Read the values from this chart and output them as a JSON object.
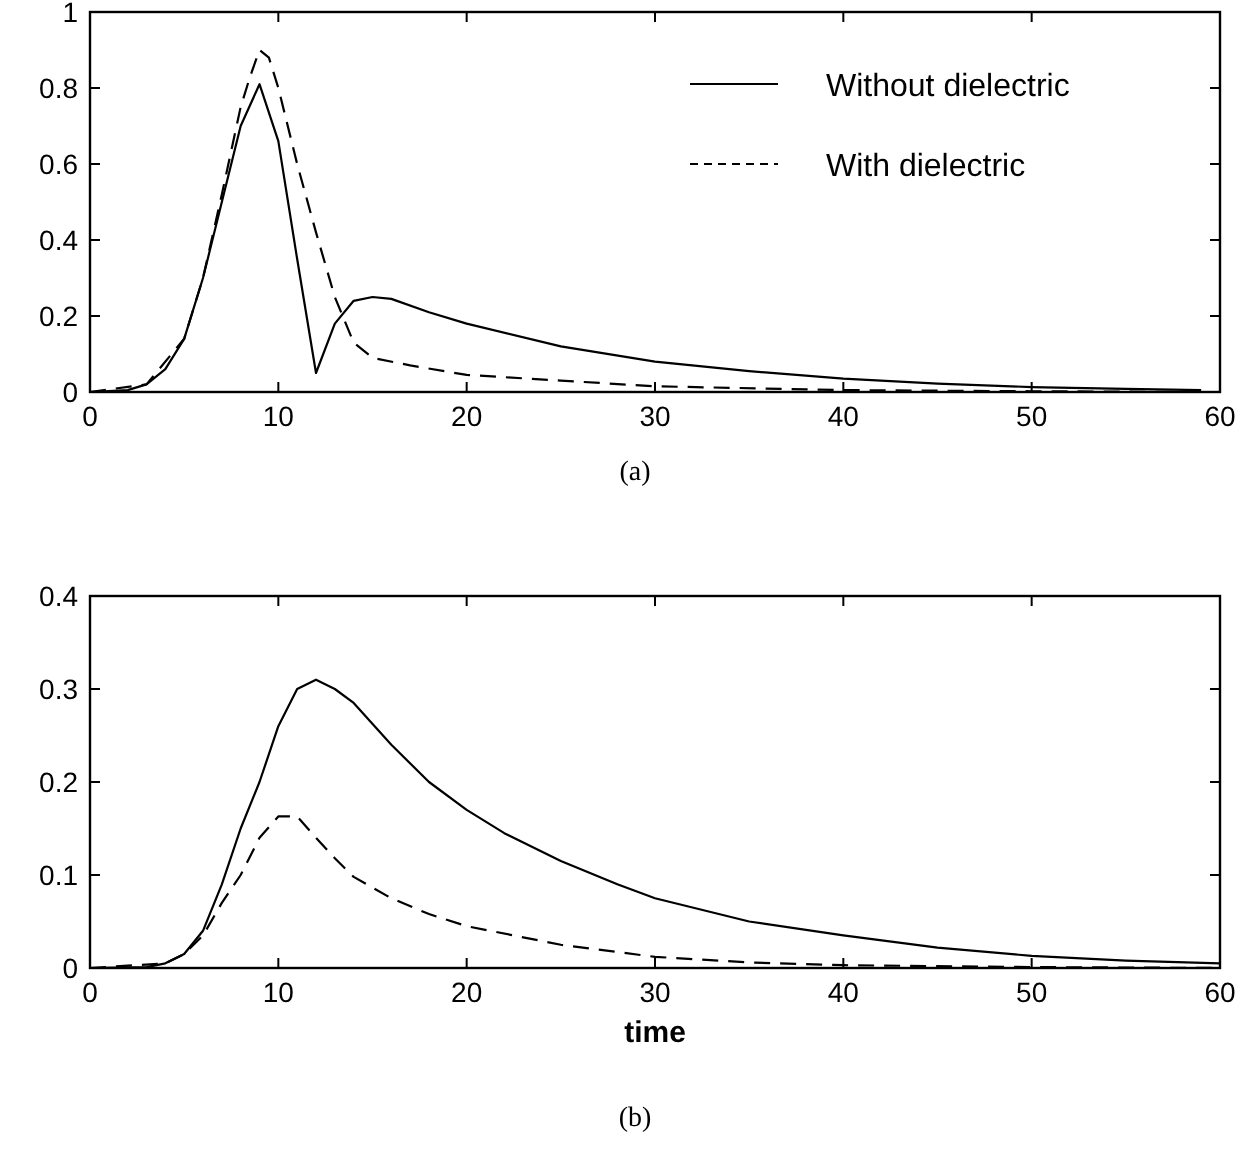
{
  "chart_data": [
    {
      "type": "line",
      "xlim": [
        0,
        60
      ],
      "ylim": [
        0,
        1
      ],
      "xticks": [
        0,
        10,
        20,
        30,
        40,
        50,
        60
      ],
      "yticks": [
        0,
        0.2,
        0.4,
        0.6,
        0.8,
        1
      ],
      "legend": "top right",
      "annotations": [
        "(a)"
      ],
      "series": [
        {
          "name": "Without dielectric",
          "color": "#000000",
          "line_style": "solid",
          "x": [
            0,
            2,
            3,
            4,
            5,
            6,
            7,
            8,
            9,
            10,
            11,
            12,
            13,
            14,
            15,
            16,
            18,
            20,
            25,
            30,
            35,
            40,
            45,
            50,
            55,
            59
          ],
          "values": [
            0,
            0.005,
            0.02,
            0.06,
            0.14,
            0.3,
            0.5,
            0.7,
            0.81,
            0.66,
            0.35,
            0.05,
            0.18,
            0.24,
            0.25,
            0.245,
            0.21,
            0.18,
            0.12,
            0.08,
            0.055,
            0.035,
            0.022,
            0.013,
            0.008,
            0.005
          ]
        },
        {
          "name": "With dielectric",
          "color": "#000000",
          "line_style": "dashed",
          "x": [
            0,
            3,
            5,
            6,
            7,
            8,
            8.5,
            9,
            9.5,
            10,
            11,
            12,
            13,
            14,
            15,
            17,
            20,
            25,
            30,
            40,
            50,
            59
          ],
          "values": [
            0,
            0.02,
            0.14,
            0.3,
            0.52,
            0.75,
            0.83,
            0.9,
            0.88,
            0.8,
            0.6,
            0.42,
            0.25,
            0.13,
            0.09,
            0.07,
            0.045,
            0.03,
            0.015,
            0.005,
            0.002,
            0
          ]
        }
      ]
    },
    {
      "type": "line",
      "xlabel": "time",
      "xlim": [
        0,
        60
      ],
      "ylim": [
        0,
        0.4
      ],
      "xticks": [
        0,
        10,
        20,
        30,
        40,
        50,
        60
      ],
      "yticks": [
        0,
        0.1,
        0.2,
        0.3,
        0.4
      ],
      "annotations": [
        "(b)"
      ],
      "series": [
        {
          "color": "#000000",
          "line_style": "solid",
          "x": [
            0,
            3,
            4,
            5,
            6,
            7,
            8,
            9,
            10,
            11,
            12,
            13,
            14,
            16,
            18,
            20,
            22,
            25,
            28,
            30,
            35,
            40,
            45,
            50,
            55,
            60
          ],
          "values": [
            0,
            0.001,
            0.005,
            0.015,
            0.04,
            0.09,
            0.15,
            0.2,
            0.26,
            0.3,
            0.31,
            0.3,
            0.285,
            0.24,
            0.2,
            0.17,
            0.145,
            0.115,
            0.09,
            0.075,
            0.05,
            0.035,
            0.022,
            0.013,
            0.008,
            0.005
          ]
        },
        {
          "color": "#000000",
          "line_style": "dashed",
          "x": [
            0,
            4,
            5,
            6,
            7,
            8,
            9,
            10,
            11,
            12,
            13,
            14,
            16,
            18,
            20,
            25,
            30,
            35,
            40,
            50,
            60
          ],
          "values": [
            0,
            0.005,
            0.015,
            0.035,
            0.07,
            0.1,
            0.14,
            0.163,
            0.163,
            0.14,
            0.118,
            0.098,
            0.075,
            0.058,
            0.045,
            0.025,
            0.012,
            0.006,
            0.003,
            0.001,
            0
          ]
        }
      ]
    }
  ]
}
